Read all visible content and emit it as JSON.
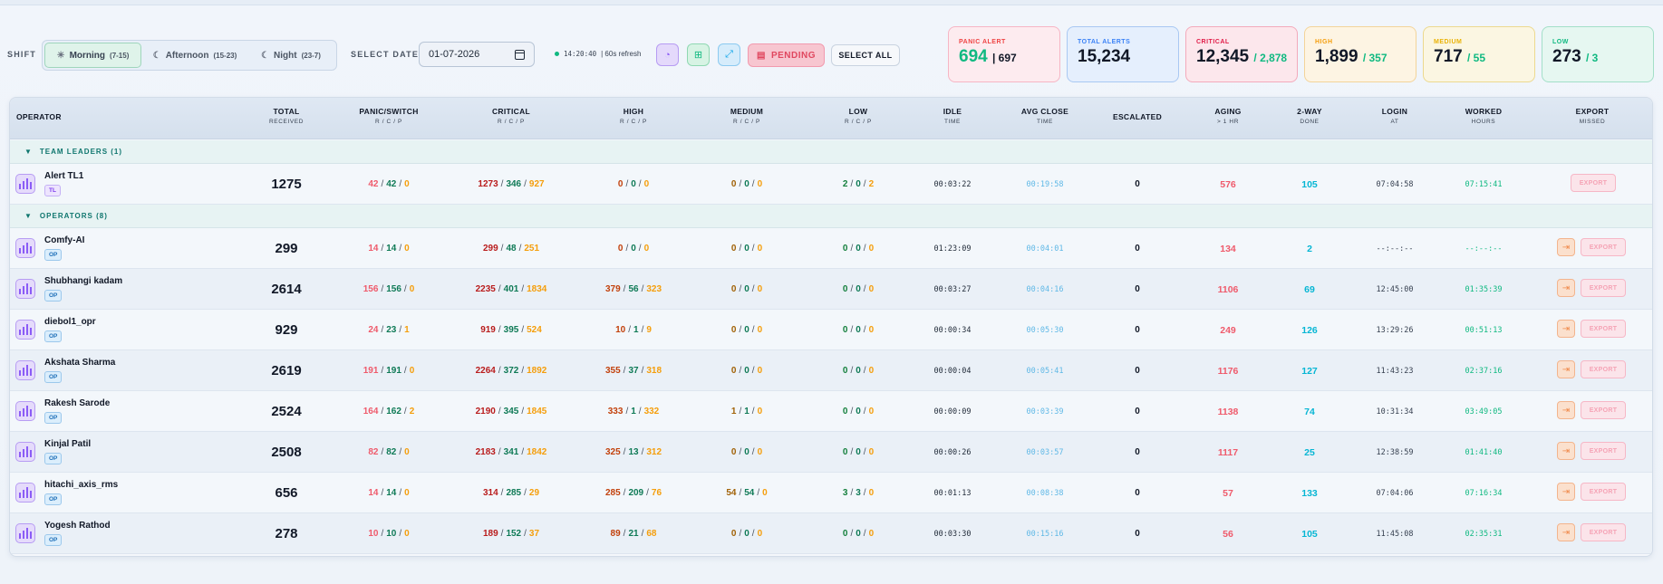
{
  "toolbar": {
    "shift_label": "SHIFT",
    "shifts": [
      {
        "icon": "sun-icon",
        "label": "Morning",
        "range": "(7-15)",
        "active": true
      },
      {
        "icon": "moon-icon",
        "label": "Afternoon",
        "range": "(15-23)",
        "active": false
      },
      {
        "icon": "moon-icon",
        "label": "Night",
        "range": "(23-7)",
        "active": false
      }
    ],
    "date_label": "SELECT DATE",
    "date_value": "01-07-2026",
    "time": "14:20:40",
    "refresh": "| 60s refresh",
    "pending_label": "PENDING",
    "select_all_label": "SELECT ALL"
  },
  "cards": [
    {
      "title": "PANIC ALERT",
      "value": "694",
      "sub": "| 697",
      "title_color": "#ef4444",
      "sub_color": "#111827",
      "value_color": "#10b981",
      "bg": "#fdebef",
      "border": "#f6b5c4"
    },
    {
      "title": "TOTAL ALERTS",
      "value": "15,234",
      "sub": "",
      "title_color": "#3b82f6",
      "sub_color": "#111827",
      "value_color": "#111827",
      "bg": "#e5effd",
      "border": "#a9c8f3"
    },
    {
      "title": "CRITICAL",
      "value": "12,345",
      "sub": "/ 2,878",
      "title_color": "#e11d48",
      "sub_color": "#10b981",
      "value_color": "#111827",
      "bg": "#fce7ec",
      "border": "#f3aabb"
    },
    {
      "title": "HIGH",
      "value": "1,899",
      "sub": "/ 357",
      "title_color": "#f59e0b",
      "sub_color": "#10b981",
      "value_color": "#111827",
      "bg": "#fdf4e3",
      "border": "#f3d49a"
    },
    {
      "title": "MEDIUM",
      "value": "717",
      "sub": "/ 55",
      "title_color": "#eab308",
      "sub_color": "#10b981",
      "value_color": "#111827",
      "bg": "#fbf6e2",
      "border": "#ecd98f"
    },
    {
      "title": "LOW",
      "value": "273",
      "sub": "/ 3",
      "title_color": "#10b981",
      "sub_color": "#10b981",
      "value_color": "#111827",
      "bg": "#e6f7f1",
      "border": "#a3dfc8"
    }
  ],
  "columns": [
    {
      "label": "OPERATOR",
      "sub": ""
    },
    {
      "label": "TOTAL",
      "sub": "RECEIVED"
    },
    {
      "label": "PANIC/SWITCH",
      "sub": "R / C / P"
    },
    {
      "label": "CRITICAL",
      "sub": "R / C / P"
    },
    {
      "label": "HIGH",
      "sub": "R / C / P"
    },
    {
      "label": "MEDIUM",
      "sub": "R / C / P"
    },
    {
      "label": "LOW",
      "sub": "R / C / P"
    },
    {
      "label": "IDLE",
      "sub": "TIME"
    },
    {
      "label": "AVG CLOSE",
      "sub": "TIME"
    },
    {
      "label": "ESCALATED",
      "sub": ""
    },
    {
      "label": "AGING",
      "sub": "> 1 HR"
    },
    {
      "label": "2-WAY",
      "sub": "DONE"
    },
    {
      "label": "LOGIN",
      "sub": "AT"
    },
    {
      "label": "WORKED",
      "sub": "HOURS"
    },
    {
      "label": "EXPORT",
      "sub": "MISSED"
    }
  ],
  "groups": [
    {
      "label": "TEAM LEADERS (1)",
      "rows": [
        {
          "name": "Alert TL1",
          "badge": "TL",
          "total": "1275",
          "panic": [
            "42",
            "42",
            "0"
          ],
          "critical": [
            "1273",
            "346",
            "927"
          ],
          "high": [
            "0",
            "0",
            "0"
          ],
          "medium": [
            "0",
            "0",
            "0"
          ],
          "low": [
            "2",
            "0",
            "2"
          ],
          "idle": "00:03:22",
          "avg_close": "00:19:58",
          "escalated": "0",
          "aging": "576",
          "two_way": "105",
          "login": "07:04:58",
          "worked": "07:15:41",
          "export": "EXPORT",
          "export_icon": false
        }
      ]
    },
    {
      "label": "OPERATORS (8)",
      "rows": [
        {
          "name": "Comfy-AI",
          "badge": "OP",
          "total": "299",
          "panic": [
            "14",
            "14",
            "0"
          ],
          "critical": [
            "299",
            "48",
            "251"
          ],
          "high": [
            "0",
            "0",
            "0"
          ],
          "medium": [
            "0",
            "0",
            "0"
          ],
          "low": [
            "0",
            "0",
            "0"
          ],
          "idle": "01:23:09",
          "avg_close": "00:04:01",
          "escalated": "0",
          "aging": "134",
          "two_way": "2",
          "login": "--:--:--",
          "worked": "--:--:--",
          "export": "EXPORT",
          "export_icon": true
        },
        {
          "name": "Shubhangi kadam",
          "badge": "OP",
          "total": "2614",
          "panic": [
            "156",
            "156",
            "0"
          ],
          "critical": [
            "2235",
            "401",
            "1834"
          ],
          "high": [
            "379",
            "56",
            "323"
          ],
          "medium": [
            "0",
            "0",
            "0"
          ],
          "low": [
            "0",
            "0",
            "0"
          ],
          "idle": "00:03:27",
          "avg_close": "00:04:16",
          "escalated": "0",
          "aging": "1106",
          "two_way": "69",
          "login": "12:45:00",
          "worked": "01:35:39",
          "export": "EXPORT",
          "export_icon": true
        },
        {
          "name": "diebol1_opr",
          "badge": "OP",
          "total": "929",
          "panic": [
            "24",
            "23",
            "1"
          ],
          "critical": [
            "919",
            "395",
            "524"
          ],
          "high": [
            "10",
            "1",
            "9"
          ],
          "medium": [
            "0",
            "0",
            "0"
          ],
          "low": [
            "0",
            "0",
            "0"
          ],
          "idle": "00:00:34",
          "avg_close": "00:05:30",
          "escalated": "0",
          "aging": "249",
          "two_way": "126",
          "login": "13:29:26",
          "worked": "00:51:13",
          "export": "EXPORT",
          "export_icon": true
        },
        {
          "name": "Akshata Sharma",
          "badge": "OP",
          "total": "2619",
          "panic": [
            "191",
            "191",
            "0"
          ],
          "critical": [
            "2264",
            "372",
            "1892"
          ],
          "high": [
            "355",
            "37",
            "318"
          ],
          "medium": [
            "0",
            "0",
            "0"
          ],
          "low": [
            "0",
            "0",
            "0"
          ],
          "idle": "00:00:04",
          "avg_close": "00:05:41",
          "escalated": "0",
          "aging": "1176",
          "two_way": "127",
          "login": "11:43:23",
          "worked": "02:37:16",
          "export": "EXPORT",
          "export_icon": true
        },
        {
          "name": "Rakesh Sarode",
          "badge": "OP",
          "total": "2524",
          "panic": [
            "164",
            "162",
            "2"
          ],
          "critical": [
            "2190",
            "345",
            "1845"
          ],
          "high": [
            "333",
            "1",
            "332"
          ],
          "medium": [
            "1",
            "1",
            "0"
          ],
          "low": [
            "0",
            "0",
            "0"
          ],
          "idle": "00:00:09",
          "avg_close": "00:03:39",
          "escalated": "0",
          "aging": "1138",
          "two_way": "74",
          "login": "10:31:34",
          "worked": "03:49:05",
          "export": "EXPORT",
          "export_icon": true
        },
        {
          "name": "Kinjal Patil",
          "badge": "OP",
          "total": "2508",
          "panic": [
            "82",
            "82",
            "0"
          ],
          "critical": [
            "2183",
            "341",
            "1842"
          ],
          "high": [
            "325",
            "13",
            "312"
          ],
          "medium": [
            "0",
            "0",
            "0"
          ],
          "low": [
            "0",
            "0",
            "0"
          ],
          "idle": "00:00:26",
          "avg_close": "00:03:57",
          "escalated": "0",
          "aging": "1117",
          "two_way": "25",
          "login": "12:38:59",
          "worked": "01:41:40",
          "export": "EXPORT",
          "export_icon": true
        },
        {
          "name": "hitachi_axis_rms",
          "badge": "OP",
          "total": "656",
          "panic": [
            "14",
            "14",
            "0"
          ],
          "critical": [
            "314",
            "285",
            "29"
          ],
          "high": [
            "285",
            "209",
            "76"
          ],
          "medium": [
            "54",
            "54",
            "0"
          ],
          "low": [
            "3",
            "3",
            "0"
          ],
          "idle": "00:01:13",
          "avg_close": "00:08:38",
          "escalated": "0",
          "aging": "57",
          "two_way": "133",
          "login": "07:04:06",
          "worked": "07:16:34",
          "export": "EXPORT",
          "export_icon": true
        },
        {
          "name": "Yogesh Rathod",
          "badge": "OP",
          "total": "278",
          "panic": [
            "10",
            "10",
            "0"
          ],
          "critical": [
            "189",
            "152",
            "37"
          ],
          "high": [
            "89",
            "21",
            "68"
          ],
          "medium": [
            "0",
            "0",
            "0"
          ],
          "low": [
            "0",
            "0",
            "0"
          ],
          "idle": "00:03:30",
          "avg_close": "00:15:16",
          "escalated": "0",
          "aging": "56",
          "two_way": "105",
          "login": "11:45:08",
          "worked": "02:35:31",
          "export": "EXPORT",
          "export_icon": true
        }
      ]
    }
  ]
}
